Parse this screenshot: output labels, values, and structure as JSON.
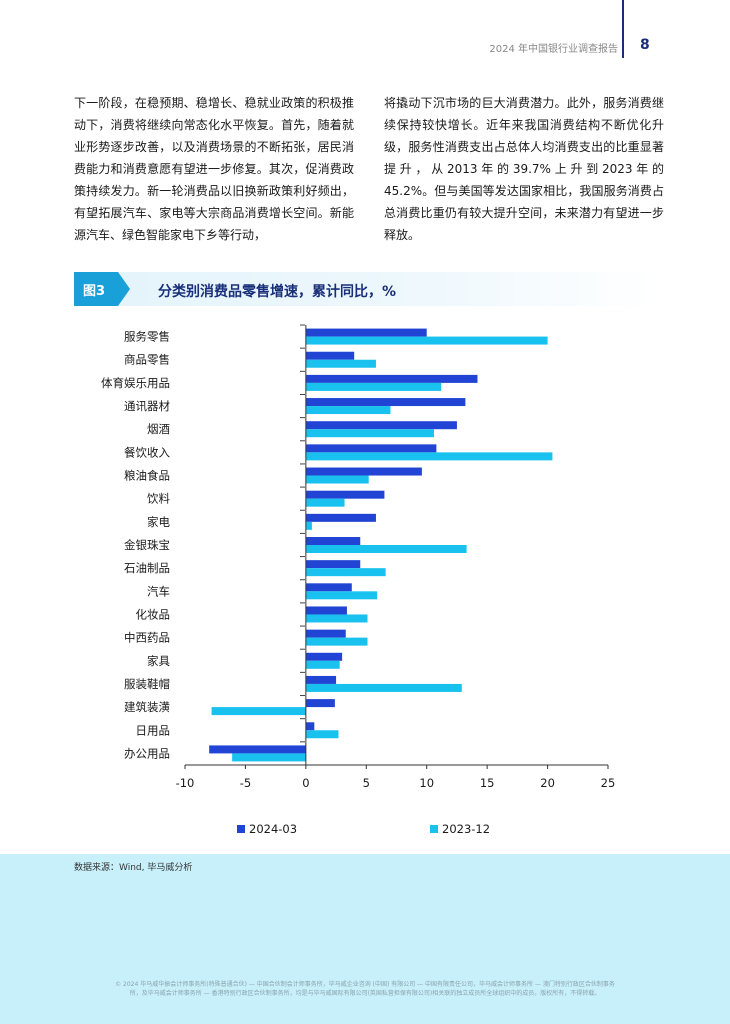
{
  "header": {
    "report_title": "2024 年中国银行业调查报告",
    "page_number": "8"
  },
  "body": {
    "left_column": "下一阶段，在稳预期、稳增长、稳就业政策的积极推动下，消费将继续向常态化水平恢复。首先，随着就业形势逐步改善，以及消费场景的不断拓张，居民消费能力和消费意愿有望进一步修复。其次，促消费政策持续发力。新一轮消费品以旧换新政策利好频出，有望拓展汽车、家电等大宗商品消费增长空间。新能源汽车、绿色智能家电下乡等行动，",
    "right_column": "将撬动下沉市场的巨大消费潜力。此外，服务消费继续保持较快增长。近年来我国消费结构不断优化升级，服务性消费支出占总体人均消费支出的比重显著提升，从2013年的39.7%上升到2023年的45.2%。但与美国等发达国家相比，我国服务消费占总消费比重仍有较大提升空间，未来潜力有望进一步释放。"
  },
  "figure": {
    "tag": "图3",
    "title": "分类别消费品零售增速，累计同比，%"
  },
  "chart_data": {
    "type": "bar",
    "orientation": "horizontal",
    "categories": [
      "服务零售",
      "商品零售",
      "体育娱乐用品",
      "通讯器材",
      "烟酒",
      "餐饮收入",
      "粮油食品",
      "饮料",
      "家电",
      "金银珠宝",
      "石油制品",
      "汽车",
      "化妆品",
      "中西药品",
      "家具",
      "服装鞋帽",
      "建筑装潢",
      "日用品",
      "办公用品"
    ],
    "series": [
      {
        "name": "2024-03",
        "color": "#2144d4",
        "values": [
          10.0,
          4.0,
          14.2,
          13.2,
          12.5,
          10.8,
          9.6,
          6.5,
          5.8,
          4.5,
          4.5,
          3.8,
          3.4,
          3.3,
          3.0,
          2.5,
          2.4,
          0.7,
          -8.0
        ]
      },
      {
        "name": "2023-12",
        "color": "#19c2ee",
        "values": [
          20.0,
          5.8,
          11.2,
          7.0,
          10.6,
          20.4,
          5.2,
          3.2,
          0.5,
          13.3,
          6.6,
          5.9,
          5.1,
          5.1,
          2.8,
          12.9,
          -7.8,
          2.7,
          -6.1
        ]
      }
    ],
    "xlim": [
      -10,
      25
    ],
    "xticks": [
      "-10",
      "-5",
      "0",
      "5",
      "10",
      "15",
      "20",
      "25"
    ],
    "xlabel": "",
    "ylabel": "",
    "grid": false,
    "legend_position": "bottom"
  },
  "source": "数据来源：Wind, 毕马威分析",
  "footer_note": "© 2024 毕马威华振会计师事务所(特殊普通合伙) — 中国合伙制会计师事务所，毕马威企业咨询 (中国) 有限公司 — 中国有限责任公司，毕马威会计师事务所 — 澳门特别行政区合伙制事务所，及毕马威会计师事务所 — 香港特别行政区合伙制事务所，均是与毕马威国际有限公司(英国私营担保有限公司)相关联的独立成员所全球组织中的成员。版权所有，不得转载。"
}
